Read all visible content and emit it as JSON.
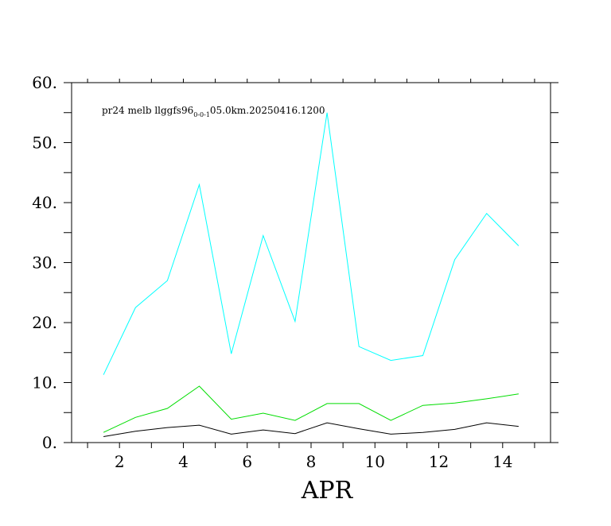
{
  "chart_data": {
    "type": "line",
    "title_main": "pr24 melb llggfs96",
    "title_sub": "0-0-1",
    "title_tail": "05.0km.20250416.1200",
    "xlabel": "APR",
    "ylabel": "",
    "xlim": [
      0.5,
      15.5
    ],
    "ylim": [
      0,
      60
    ],
    "x_ticks": [
      2,
      4,
      6,
      8,
      10,
      12,
      14
    ],
    "y_ticks": [
      0,
      10,
      20,
      30,
      40,
      50,
      60
    ],
    "y_tick_labels": [
      "0.",
      "10.",
      "20.",
      "30.",
      "40.",
      "50.",
      "60."
    ],
    "grid": false,
    "x": [
      1.5,
      2.5,
      3.5,
      4.5,
      5.5,
      6.5,
      7.5,
      8.5,
      9.5,
      10.5,
      11.5,
      12.5,
      13.5,
      14.5
    ],
    "series": [
      {
        "color": "#00ffff",
        "values": [
          11.3,
          22.5,
          27.0,
          43.0,
          14.8,
          34.5,
          20.2,
          55.0,
          16.0,
          13.7,
          14.5,
          30.5,
          38.2,
          32.8
        ]
      },
      {
        "color": "#00dd00",
        "values": [
          1.7,
          4.2,
          5.7,
          9.4,
          3.9,
          4.9,
          3.7,
          6.5,
          6.5,
          3.7,
          6.2,
          6.6,
          7.3,
          8.1
        ]
      },
      {
        "color": "#000000",
        "values": [
          1.0,
          1.9,
          2.5,
          2.9,
          1.4,
          2.1,
          1.5,
          3.3,
          2.3,
          1.4,
          1.7,
          2.2,
          3.3,
          2.7
        ]
      }
    ]
  }
}
